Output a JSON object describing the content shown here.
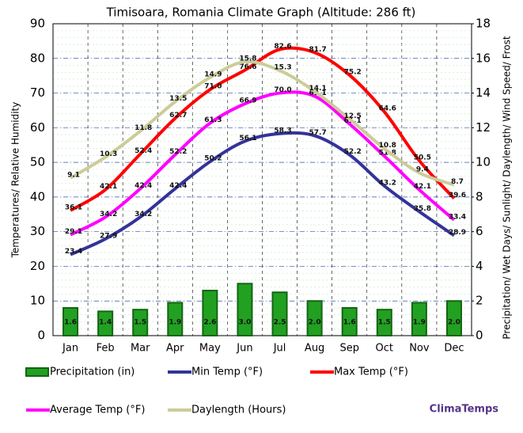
{
  "chart_data": {
    "type": "combo",
    "title": "Timisoara, Romania Climate Graph (Altitude: 286 ft)",
    "y_label": "Temperatures/ Relative Humidity",
    "y2_label": "Precipitation/ Wet Days/ Sunlight/ Daylength/ Wind Speed/ Frost",
    "source": "ClimaTemps",
    "categories": [
      "Jan",
      "Feb",
      "Mar",
      "Apr",
      "May",
      "Jun",
      "Jul",
      "Aug",
      "Sep",
      "Oct",
      "Nov",
      "Dec"
    ],
    "ylim": [
      0,
      90
    ],
    "yticks": [
      0,
      10,
      20,
      30,
      40,
      50,
      60,
      70,
      80,
      90
    ],
    "y2lim": [
      0,
      18
    ],
    "y2ticks": [
      0,
      2,
      4,
      6,
      8,
      10,
      12,
      14,
      16,
      18
    ],
    "grid": true,
    "series": [
      {
        "name": "Precipitation (in)",
        "kind": "bar",
        "axis": "y2",
        "color": "#22a022",
        "values": [
          1.6,
          1.4,
          1.5,
          1.9,
          2.6,
          3.0,
          2.5,
          2.0,
          1.6,
          1.5,
          1.9,
          2.0
        ],
        "value_labels": [
          "1.6",
          "1.4",
          "1.5",
          "1.9",
          "2.6",
          "3.0",
          "2.5",
          "2.0",
          "1.6",
          "1.5",
          "1.9",
          "2.0"
        ]
      },
      {
        "name": "Min Temp (°F)",
        "kind": "line",
        "color": "#333399",
        "values": [
          23.4,
          27.9,
          34.2,
          42.4,
          50.2,
          56.1,
          58.3,
          57.7,
          52.2,
          43.2,
          35.8,
          28.9
        ],
        "value_labels": [
          "23.4",
          "27.9",
          "34.2",
          "42.4",
          "50.2",
          "56.1",
          "58.3",
          "57.7",
          "52.2",
          "43.2",
          "35.8",
          "28.9"
        ]
      },
      {
        "name": "Max Temp (°F)",
        "kind": "line",
        "color": "#ff0000",
        "values": [
          36.1,
          42.1,
          52.4,
          62.7,
          71.0,
          76.6,
          82.6,
          81.7,
          75.2,
          64.6,
          50.5,
          39.6
        ],
        "value_labels": [
          "36.1",
          "42.1",
          "52.4",
          "62.7",
          "71.0",
          "76.6",
          "82.6",
          "81.7",
          "75.2",
          "64.6",
          "50.5",
          "39.6"
        ]
      },
      {
        "name": "Average Temp (°F)",
        "kind": "line",
        "color": "#ff00ff",
        "values": [
          29.1,
          34.2,
          42.4,
          52.2,
          61.3,
          66.9,
          70.0,
          69.1,
          61.1,
          51.8,
          42.1,
          33.4
        ],
        "value_labels": [
          "29.1",
          "34.2",
          "42.4",
          "52.2",
          "61.3",
          "66.9",
          "70.0",
          "69.1",
          "61.1",
          "51.8",
          "42.1",
          "33.4"
        ]
      },
      {
        "name": "Daylength (Hours)",
        "kind": "line",
        "axis": "y2",
        "color": "#cccc99",
        "values": [
          9.1,
          10.3,
          11.8,
          13.5,
          14.9,
          15.8,
          15.3,
          14.1,
          12.5,
          10.8,
          9.4,
          8.7
        ],
        "value_labels": [
          "9.1",
          "10.3",
          "11.8",
          "13.5",
          "14.9",
          "15.8",
          "15.3",
          "14.1",
          "12.5",
          "10.8",
          "9.4",
          "8.7"
        ]
      }
    ]
  }
}
